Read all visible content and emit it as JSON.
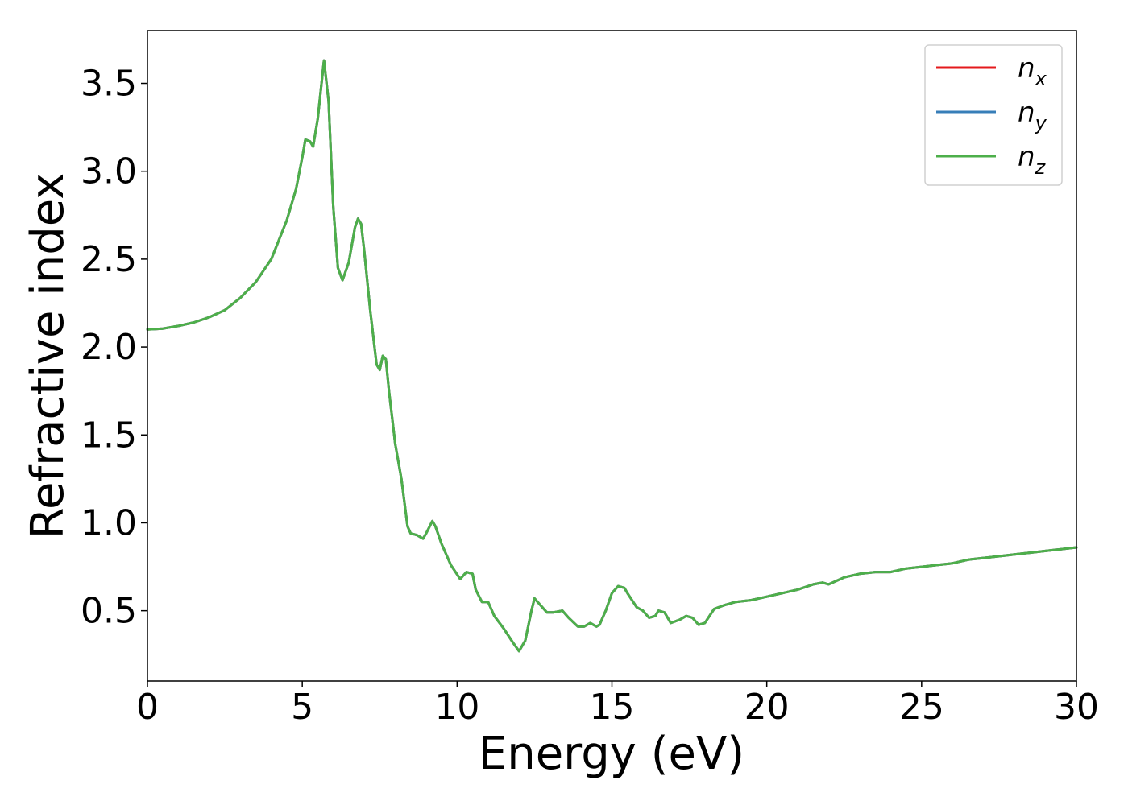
{
  "chart_data": {
    "type": "line",
    "xlabel": "Energy (eV)",
    "ylabel": "Refractive index",
    "xlim": [
      0,
      30
    ],
    "ylim": [
      0.1,
      3.8
    ],
    "xticks": [
      {
        "value": 0,
        "label": "0"
      },
      {
        "value": 5,
        "label": "5"
      },
      {
        "value": 10,
        "label": "10"
      },
      {
        "value": 15,
        "label": "15"
      },
      {
        "value": 20,
        "label": "20"
      },
      {
        "value": 25,
        "label": "25"
      },
      {
        "value": 30,
        "label": "30"
      }
    ],
    "yticks": [
      {
        "value": 0.5,
        "label": "0.5"
      },
      {
        "value": 1.0,
        "label": "1.0"
      },
      {
        "value": 1.5,
        "label": "1.5"
      },
      {
        "value": 2.0,
        "label": "2.0"
      },
      {
        "value": 2.5,
        "label": "2.5"
      },
      {
        "value": 3.0,
        "label": "3.0"
      },
      {
        "value": 3.5,
        "label": "3.5"
      }
    ],
    "grid": false,
    "legend_position": "top-right",
    "x": [
      0,
      0.5,
      1.0,
      1.5,
      2.0,
      2.5,
      3.0,
      3.5,
      4.0,
      4.5,
      4.8,
      5.0,
      5.1,
      5.25,
      5.35,
      5.5,
      5.7,
      5.85,
      6.0,
      6.15,
      6.3,
      6.5,
      6.7,
      6.8,
      6.9,
      7.0,
      7.2,
      7.4,
      7.5,
      7.6,
      7.7,
      7.8,
      8.0,
      8.2,
      8.4,
      8.5,
      8.7,
      8.9,
      9.0,
      9.2,
      9.3,
      9.5,
      9.8,
      10.1,
      10.3,
      10.5,
      10.6,
      10.8,
      11.0,
      11.2,
      11.5,
      11.8,
      12.0,
      12.2,
      12.4,
      12.5,
      12.7,
      12.9,
      13.1,
      13.4,
      13.6,
      13.9,
      14.1,
      14.3,
      14.5,
      14.6,
      14.8,
      15.0,
      15.2,
      15.4,
      15.5,
      15.8,
      16.0,
      16.2,
      16.4,
      16.5,
      16.7,
      16.9,
      17.2,
      17.4,
      17.6,
      17.8,
      18.0,
      18.3,
      18.6,
      19.0,
      19.5,
      20.0,
      20.5,
      21.0,
      21.5,
      21.8,
      22.0,
      22.5,
      23.0,
      23.5,
      24.0,
      24.5,
      25.0,
      25.5,
      26.0,
      26.5,
      27.0,
      27.5,
      28.0,
      28.5,
      29.0,
      29.5,
      30.0
    ],
    "series": [
      {
        "name": "n",
        "subscript": "x",
        "color": "#e41a1c",
        "values": [
          2.1,
          2.105,
          2.12,
          2.14,
          2.17,
          2.21,
          2.28,
          2.37,
          2.5,
          2.72,
          2.9,
          3.08,
          3.18,
          3.17,
          3.14,
          3.3,
          3.63,
          3.4,
          2.8,
          2.45,
          2.38,
          2.48,
          2.68,
          2.73,
          2.7,
          2.55,
          2.2,
          1.9,
          1.87,
          1.95,
          1.93,
          1.75,
          1.45,
          1.25,
          0.98,
          0.94,
          0.93,
          0.91,
          0.94,
          1.01,
          0.98,
          0.88,
          0.76,
          0.68,
          0.72,
          0.71,
          0.62,
          0.55,
          0.55,
          0.47,
          0.4,
          0.32,
          0.27,
          0.33,
          0.5,
          0.57,
          0.53,
          0.49,
          0.49,
          0.5,
          0.46,
          0.41,
          0.41,
          0.43,
          0.41,
          0.42,
          0.5,
          0.6,
          0.64,
          0.63,
          0.6,
          0.52,
          0.5,
          0.46,
          0.47,
          0.5,
          0.49,
          0.43,
          0.45,
          0.47,
          0.46,
          0.42,
          0.43,
          0.51,
          0.53,
          0.55,
          0.56,
          0.58,
          0.6,
          0.62,
          0.65,
          0.66,
          0.65,
          0.69,
          0.71,
          0.72,
          0.72,
          0.74,
          0.75,
          0.76,
          0.77,
          0.79,
          0.8,
          0.81,
          0.82,
          0.83,
          0.84,
          0.85,
          0.86
        ]
      },
      {
        "name": "n",
        "subscript": "y",
        "color": "#377eb8",
        "values": [
          2.1,
          2.105,
          2.12,
          2.14,
          2.17,
          2.21,
          2.28,
          2.37,
          2.5,
          2.72,
          2.9,
          3.08,
          3.18,
          3.17,
          3.14,
          3.3,
          3.63,
          3.4,
          2.8,
          2.45,
          2.38,
          2.48,
          2.68,
          2.73,
          2.7,
          2.55,
          2.2,
          1.9,
          1.87,
          1.95,
          1.93,
          1.75,
          1.45,
          1.25,
          0.98,
          0.94,
          0.93,
          0.91,
          0.94,
          1.01,
          0.98,
          0.88,
          0.76,
          0.68,
          0.72,
          0.71,
          0.62,
          0.55,
          0.55,
          0.47,
          0.4,
          0.32,
          0.27,
          0.33,
          0.5,
          0.57,
          0.53,
          0.49,
          0.49,
          0.5,
          0.46,
          0.41,
          0.41,
          0.43,
          0.41,
          0.42,
          0.5,
          0.6,
          0.64,
          0.63,
          0.6,
          0.52,
          0.5,
          0.46,
          0.47,
          0.5,
          0.49,
          0.43,
          0.45,
          0.47,
          0.46,
          0.42,
          0.43,
          0.51,
          0.53,
          0.55,
          0.56,
          0.58,
          0.6,
          0.62,
          0.65,
          0.66,
          0.65,
          0.69,
          0.71,
          0.72,
          0.72,
          0.74,
          0.75,
          0.76,
          0.77,
          0.79,
          0.8,
          0.81,
          0.82,
          0.83,
          0.84,
          0.85,
          0.86
        ]
      },
      {
        "name": "n",
        "subscript": "z",
        "color": "#4daf4a",
        "values": [
          2.1,
          2.105,
          2.12,
          2.14,
          2.17,
          2.21,
          2.28,
          2.37,
          2.5,
          2.72,
          2.9,
          3.08,
          3.18,
          3.17,
          3.14,
          3.3,
          3.63,
          3.4,
          2.8,
          2.45,
          2.38,
          2.48,
          2.68,
          2.73,
          2.7,
          2.55,
          2.2,
          1.9,
          1.87,
          1.95,
          1.93,
          1.75,
          1.45,
          1.25,
          0.98,
          0.94,
          0.93,
          0.91,
          0.94,
          1.01,
          0.98,
          0.88,
          0.76,
          0.68,
          0.72,
          0.71,
          0.62,
          0.55,
          0.55,
          0.47,
          0.4,
          0.32,
          0.27,
          0.33,
          0.5,
          0.57,
          0.53,
          0.49,
          0.49,
          0.5,
          0.46,
          0.41,
          0.41,
          0.43,
          0.41,
          0.42,
          0.5,
          0.6,
          0.64,
          0.63,
          0.6,
          0.52,
          0.5,
          0.46,
          0.47,
          0.5,
          0.49,
          0.43,
          0.45,
          0.47,
          0.46,
          0.42,
          0.43,
          0.51,
          0.53,
          0.55,
          0.56,
          0.58,
          0.6,
          0.62,
          0.65,
          0.66,
          0.65,
          0.69,
          0.71,
          0.72,
          0.72,
          0.74,
          0.75,
          0.76,
          0.77,
          0.79,
          0.8,
          0.81,
          0.82,
          0.83,
          0.84,
          0.85,
          0.86
        ]
      }
    ]
  }
}
